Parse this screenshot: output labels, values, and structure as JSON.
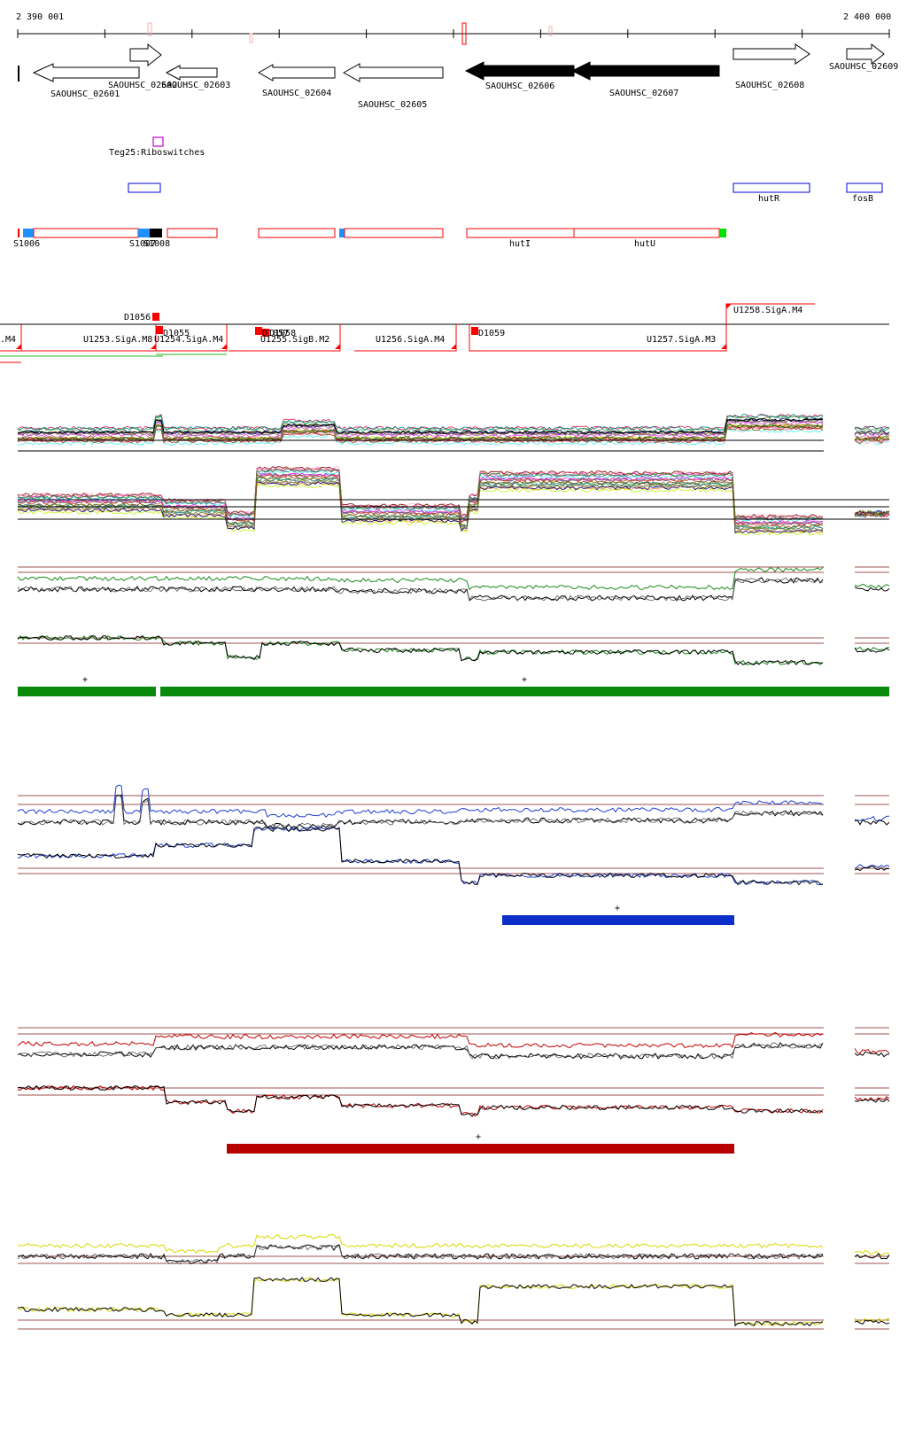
{
  "ruler": {
    "start_label": "2 390 001",
    "end_label": "2 400 000"
  },
  "genes": [
    {
      "label": "SAOUHSC_02601",
      "strand": "-",
      "filled": false
    },
    {
      "label": "SAOUHSC_02602",
      "strand": "+",
      "filled": false
    },
    {
      "label": "SAOUHSC_02603",
      "strand": "-",
      "filled": false
    },
    {
      "label": "SAOUHSC_02604",
      "strand": "-",
      "filled": false
    },
    {
      "label": "SAOUHSC_02605",
      "strand": "-",
      "filled": false
    },
    {
      "label": "SAOUHSC_02606",
      "strand": "-",
      "filled": true
    },
    {
      "label": "SAOUHSC_02607",
      "strand": "-",
      "filled": true
    },
    {
      "label": "SAOUHSC_02608",
      "strand": "+",
      "filled": false
    },
    {
      "label": "SAOUHSC_02609",
      "strand": "+",
      "filled": false
    }
  ],
  "rfam": {
    "label": "Teg25:Riboswitches"
  },
  "operons": [
    {
      "label": "hutR"
    },
    {
      "label": "fosB"
    }
  ],
  "segments": [
    {
      "label": "S1006"
    },
    {
      "label": "S1007"
    },
    {
      "label": "S1008"
    },
    {
      "label": "hutI"
    },
    {
      "label": "hutU"
    }
  ],
  "promoters": [
    {
      "label": "D1056"
    },
    {
      "label": "D1055"
    },
    {
      "label": "D1057"
    },
    {
      "label": "D1058"
    },
    {
      "label": "D1059"
    }
  ],
  "transcription_units": [
    {
      "label": ".M4"
    },
    {
      "label": "U1253.SigA.M8"
    },
    {
      "label": "U1254.SigA.M4"
    },
    {
      "label": "U1255.SigB.M2"
    },
    {
      "label": "U1256.SigA.M4"
    },
    {
      "label": "U1257.SigA.M3"
    },
    {
      "label": "U1258.SigA.M4"
    }
  ],
  "condition_bars": [
    {
      "label": "+",
      "color": "#0a8a0a"
    },
    {
      "label": "+",
      "color": "#0a8a0a"
    },
    {
      "label": "+",
      "color": "#0b2fc8"
    },
    {
      "label": "+",
      "color": "#b80000"
    }
  ],
  "colors": {
    "gene_filled": "#000000",
    "segment_outline": "#ff0000",
    "segment_blue": "#1e90ff",
    "segment_green": "#00e000",
    "operon_outline": "#0000cc",
    "rfam": "#cc00cc",
    "green_track": "#1a8a1a",
    "blue_track": "#1f3fd0",
    "red_track": "#c00000",
    "yellow_track": "#d8d800",
    "threshold": "#a05050"
  }
}
